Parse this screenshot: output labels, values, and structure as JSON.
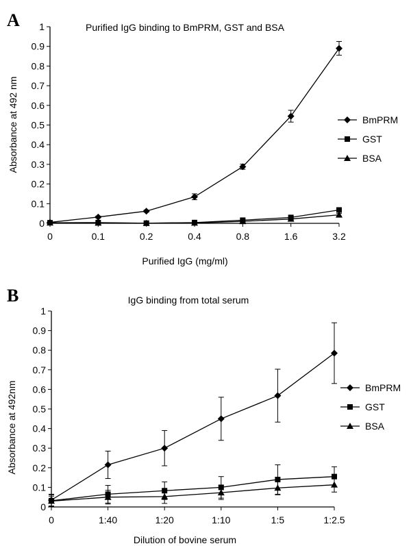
{
  "chart_data": [
    {
      "type": "line",
      "panel": "A",
      "title": "Purified IgG binding to BmPRM, GST and BSA",
      "xlabel": "Purified IgG (mg/ml)",
      "ylabel": "Absorbance at 492 nm",
      "categories": [
        "0",
        "0.1",
        "0.2",
        "0.4",
        "0.8",
        "1.6",
        "3.2"
      ],
      "ylim": [
        0,
        1
      ],
      "yticks": [
        "0",
        "0.1",
        "0.2",
        "0.3",
        "0.4",
        "0.5",
        "0.6",
        "0.7",
        "0.8",
        "0.9",
        "1"
      ],
      "grid": false,
      "legend_position": "right",
      "series": [
        {
          "name": "BmPRM",
          "marker": "diamond",
          "values": [
            0.005,
            0.032,
            0.062,
            0.135,
            0.288,
            0.545,
            0.89
          ],
          "errors": [
            0.003,
            0.005,
            0.005,
            0.015,
            0.013,
            0.03,
            0.035
          ]
        },
        {
          "name": "GST",
          "marker": "square",
          "values": [
            0.003,
            0.004,
            0.001,
            0.004,
            0.016,
            0.03,
            0.068
          ],
          "errors": [
            0.002,
            0.002,
            0.002,
            0.003,
            0.005,
            0.006,
            0.008
          ]
        },
        {
          "name": "BSA",
          "marker": "triangle",
          "values": [
            0.003,
            0.002,
            0.001,
            0.002,
            0.01,
            0.022,
            0.043
          ],
          "errors": [
            0.002,
            0.002,
            0.002,
            0.003,
            0.004,
            0.005,
            0.007
          ]
        }
      ]
    },
    {
      "type": "line",
      "panel": "B",
      "title": "IgG binding from total serum",
      "xlabel": "Dilution of bovine serum",
      "ylabel": "Absorbance at 492nm",
      "categories": [
        "0",
        "1:40",
        "1:20",
        "1:10",
        "1:5",
        "1:2.5"
      ],
      "ylim": [
        0,
        1
      ],
      "yticks": [
        "0",
        "0.1",
        "0.2",
        "0.3",
        "0.4",
        "0.5",
        "0.6",
        "0.7",
        "0.8",
        "0.9",
        "1"
      ],
      "grid": false,
      "legend_position": "right",
      "series": [
        {
          "name": "BmPRM",
          "marker": "diamond",
          "values": [
            0.035,
            0.215,
            0.3,
            0.45,
            0.568,
            0.785
          ],
          "errors": [
            0.03,
            0.07,
            0.09,
            0.11,
            0.135,
            0.155
          ]
        },
        {
          "name": "GST",
          "marker": "square",
          "values": [
            0.032,
            0.065,
            0.083,
            0.1,
            0.14,
            0.155
          ],
          "errors": [
            0.03,
            0.045,
            0.045,
            0.055,
            0.075,
            0.05
          ]
        },
        {
          "name": "BSA",
          "marker": "triangle",
          "values": [
            0.03,
            0.05,
            0.053,
            0.073,
            0.097,
            0.113
          ],
          "errors": [
            0.025,
            0.035,
            0.035,
            0.035,
            0.035,
            0.037
          ]
        }
      ]
    }
  ]
}
